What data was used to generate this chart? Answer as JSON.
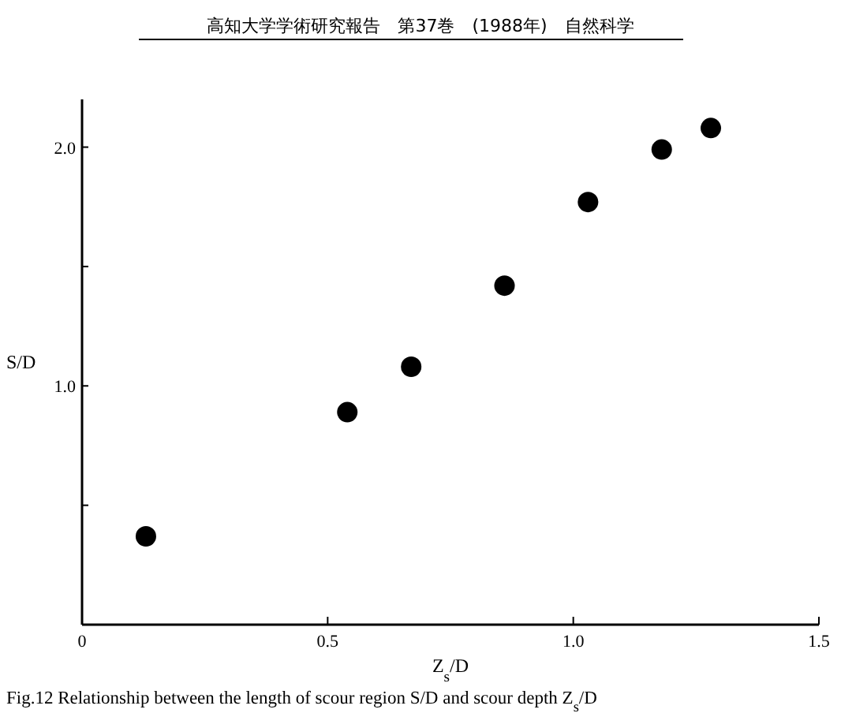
{
  "chart_data": {
    "type": "scatter",
    "title": "高知大学学術研究報告　第37巻　(1988年)　自然科学",
    "xlabel": "Z$_{s}$/D",
    "ylabel": "S/D",
    "annotations": [
      "Fig.12 Relationship between the length of scour region S/D and scour depth Z$_{s}$/D"
    ],
    "x": [
      0.13,
      0.54,
      0.67,
      0.86,
      1.03,
      1.18,
      1.28
    ],
    "series": [
      {
        "color": "#000000",
        "values": [
          0.37,
          0.89,
          1.08,
          1.42,
          1.77,
          1.99,
          2.08
        ]
      }
    ],
    "xlim": [
      0,
      1.5
    ],
    "ylim": [
      0,
      2.2
    ],
    "xticks": [
      0,
      {
        "value": 0.5,
        "label": "0.5"
      },
      {
        "value": 1,
        "label": "1.0"
      },
      {
        "value": 1.5,
        "label": "1.5"
      }
    ],
    "yticks": [
      {
        "value": 0.5,
        "label": null
      },
      {
        "value": 1,
        "label": "1.0"
      },
      {
        "value": 1.5,
        "label": null
      },
      {
        "value": 2,
        "label": "2.0"
      }
    ],
    "marker": "circle",
    "grid": false
  }
}
